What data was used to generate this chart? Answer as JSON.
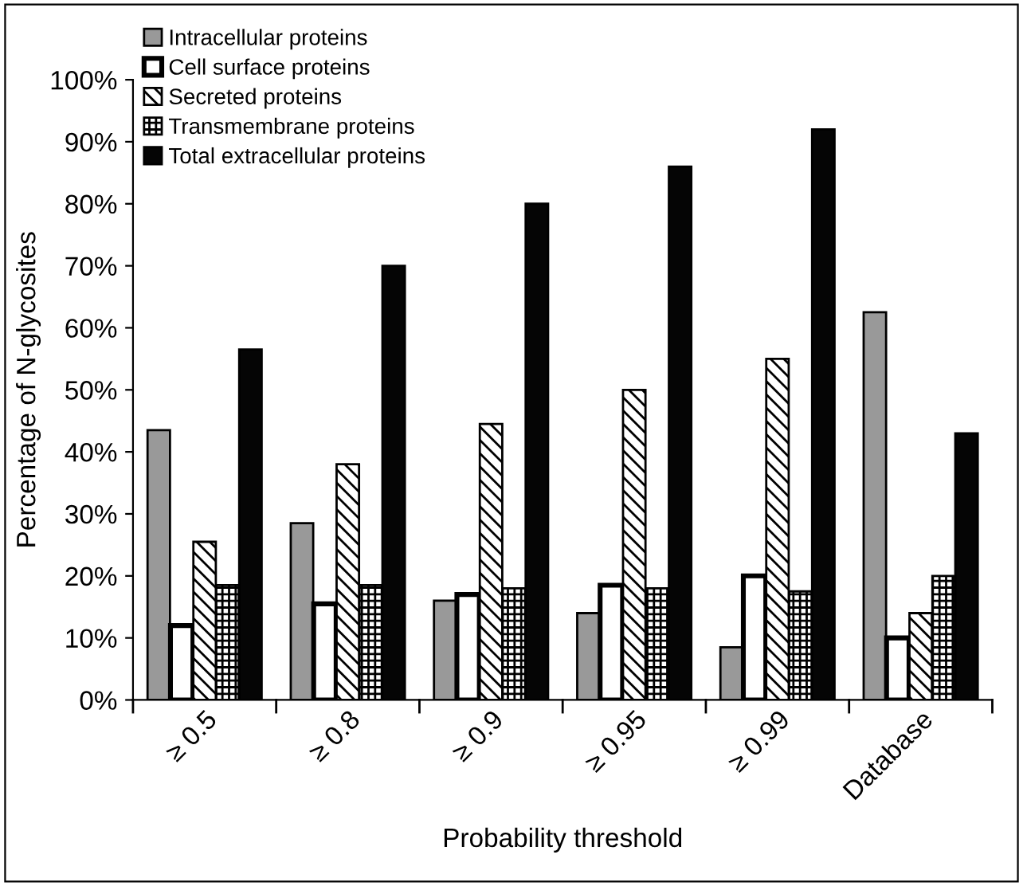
{
  "chart_data": {
    "type": "bar",
    "categories": [
      "≥ 0.5",
      "≥ 0.8",
      "≥ 0.9",
      "≥ 0.95",
      "≥ 0.99",
      "Database"
    ],
    "xlabel": "Probability threshold",
    "ylabel": "Percentage of N-glycosites",
    "series": [
      {
        "name": "Intracellular proteins",
        "color": "#999999",
        "values": [
          43.5,
          28.5,
          16,
          14,
          8.5,
          62.5
        ]
      },
      {
        "name": "Cell surface proteins",
        "color": "#ffffff",
        "values": [
          12,
          15.5,
          17,
          18.5,
          20,
          10
        ]
      },
      {
        "name": "Secreted proteins",
        "color": "#000000",
        "values": [
          25.5,
          38,
          44.5,
          50,
          55,
          14
        ]
      },
      {
        "name": "Transmembrane proteins",
        "color": "#000000",
        "values": [
          18.5,
          18.5,
          18,
          18,
          17.5,
          20
        ]
      },
      {
        "name": "Total extracellular proteins",
        "color": "#050505",
        "values": [
          56.5,
          70,
          80,
          86,
          92,
          43
        ]
      }
    ],
    "ylim": [
      0,
      100
    ],
    "yticks": [
      {
        "value": 0,
        "label": "0%"
      },
      {
        "value": 10,
        "label": "10%"
      },
      {
        "value": 20,
        "label": "20%"
      },
      {
        "value": 30,
        "label": "30%"
      },
      {
        "value": 40,
        "label": "40%"
      },
      {
        "value": 50,
        "label": "50%"
      },
      {
        "value": 60,
        "label": "60%"
      },
      {
        "value": 70,
        "label": "70%"
      },
      {
        "value": 80,
        "label": "80%"
      },
      {
        "value": 90,
        "label": "90%"
      },
      {
        "value": 100,
        "label": "100%"
      }
    ],
    "grid": false,
    "legend": "top left"
  }
}
